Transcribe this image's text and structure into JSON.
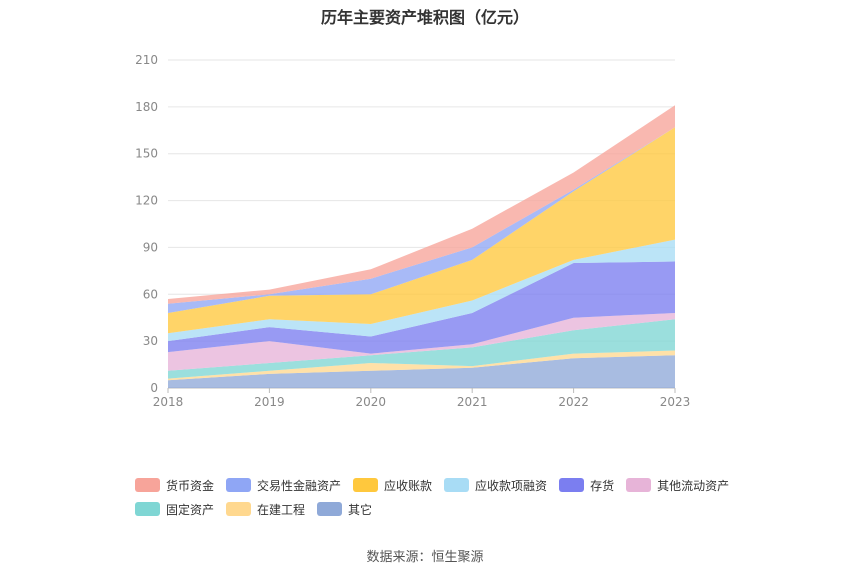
{
  "chart_data": {
    "type": "area",
    "stacked": true,
    "title": "历年主要资产堆积图（亿元）",
    "x": [
      "2018",
      "2019",
      "2020",
      "2021",
      "2022",
      "2023"
    ],
    "y_ticks": [
      "0",
      "30",
      "60",
      "90",
      "120",
      "150",
      "180",
      "210"
    ],
    "ylim": [
      0,
      210
    ],
    "grid": true,
    "legend_position": "bottom",
    "series": [
      {
        "name": "其它",
        "color": "#8fa9d8",
        "values": [
          5,
          9,
          11,
          13,
          19,
          21
        ]
      },
      {
        "name": "在建工程",
        "color": "#ffd88f",
        "values": [
          1,
          2,
          5,
          1,
          3,
          3
        ]
      },
      {
        "name": "固定资产",
        "color": "#7fd6d4",
        "values": [
          5,
          5,
          5,
          12,
          15,
          20
        ]
      },
      {
        "name": "其他流动资产",
        "color": "#e7b4d8",
        "values": [
          12,
          14,
          1,
          2,
          8,
          4
        ]
      },
      {
        "name": "存货",
        "color": "#7b7ef0",
        "values": [
          7,
          9,
          11,
          20,
          35,
          33
        ]
      },
      {
        "name": "应收款项融资",
        "color": "#a8dcf5",
        "values": [
          5,
          5,
          8,
          8,
          2,
          14
        ]
      },
      {
        "name": "应收账款",
        "color": "#ffc83d",
        "values": [
          13,
          15,
          19,
          26,
          44,
          72
        ]
      },
      {
        "name": "交易性金融资产",
        "color": "#8fa6f5",
        "values": [
          6,
          1,
          10,
          8,
          1,
          0
        ]
      },
      {
        "name": "货币资金",
        "color": "#f7a49a",
        "values": [
          3,
          3,
          6,
          12,
          11,
          14
        ]
      }
    ]
  },
  "source": "数据来源：恒生聚源"
}
